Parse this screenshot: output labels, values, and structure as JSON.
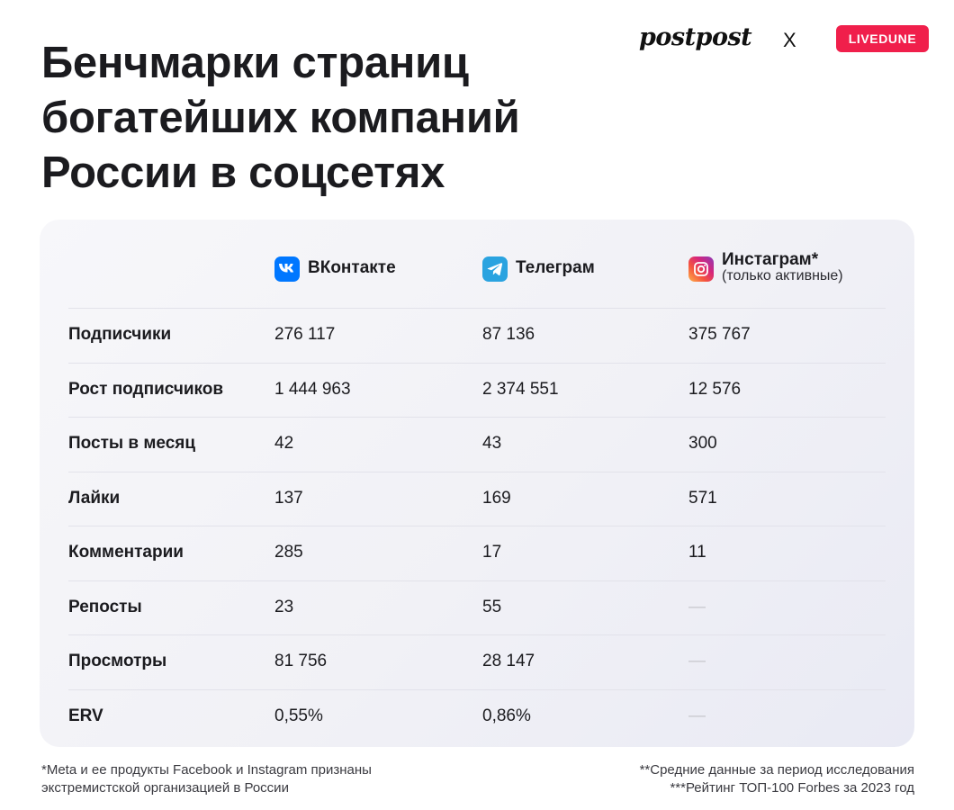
{
  "title_lines": [
    "Бенчмарки страниц",
    "богатейших компаний",
    "России в соцсетях"
  ],
  "brand": {
    "postpost": "postpost",
    "cross": "X",
    "livedune": "LIVEDUNE"
  },
  "colors": {
    "livedune": "#f01f4b",
    "vk": "#0077ff",
    "telegram": "#2aa3e0",
    "text": "#1b1b1f"
  },
  "platforms": [
    {
      "name": "ВКонтакте",
      "sub": "",
      "icon": "vk-icon"
    },
    {
      "name": "Телеграм",
      "sub": "",
      "icon": "telegram-icon"
    },
    {
      "name": "Инстаграм*",
      "sub": "(только активные)",
      "icon": "instagram-icon"
    }
  ],
  "rows": [
    {
      "label": "Подписчики",
      "values": [
        "276 117",
        "87 136",
        "375 767"
      ]
    },
    {
      "label": "Рост подписчиков",
      "values": [
        "1 444 963",
        "2 374 551",
        "12 576"
      ]
    },
    {
      "label": "Посты в месяц",
      "values": [
        "42",
        "43",
        "300"
      ]
    },
    {
      "label": "Лайки",
      "values": [
        "137",
        "169",
        "571"
      ]
    },
    {
      "label": "Комментарии",
      "values": [
        "285",
        "17",
        "11"
      ]
    },
    {
      "label": "Репосты",
      "values": [
        "23",
        "55",
        "—"
      ]
    },
    {
      "label": "Просмотры",
      "values": [
        "81 756",
        "28 147",
        "—"
      ]
    },
    {
      "label": "ERV",
      "values": [
        "0,55%",
        "0,86%",
        "—"
      ]
    }
  ],
  "footnotes": {
    "left": [
      "*Meta и ее продукты Facebook и Instagram признаны",
      "экстремистской организацией в России"
    ],
    "right": [
      "**Средние данные за период исследования",
      "***Рейтинг ТОП-100 Forbes за 2023 год"
    ]
  }
}
